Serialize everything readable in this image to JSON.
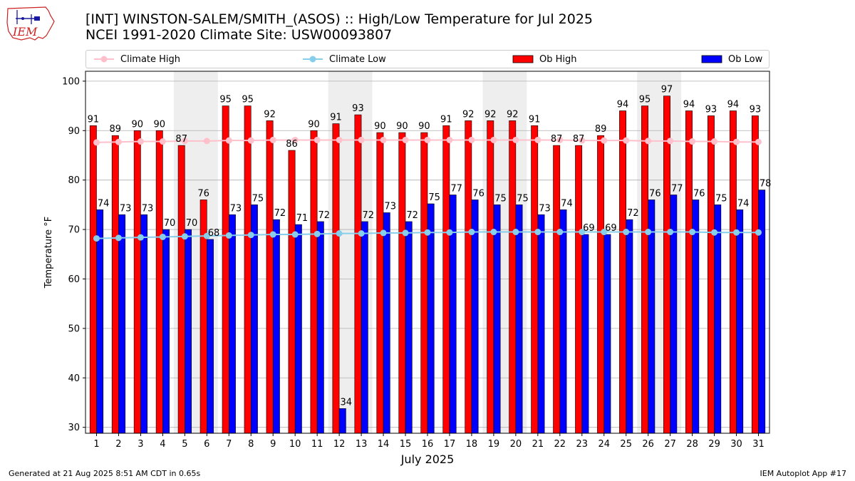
{
  "header": {
    "title_line1": "[INT] WINSTON-SALEM/SMITH_(ASOS) :: High/Low Temperature for Jul 2025",
    "title_line2": "NCEI 1991-2020 Climate Site: USW00093807"
  },
  "logo": {
    "text": "IEM",
    "icon": "iowa-state-logo-icon"
  },
  "legend": {
    "climate_high": "Climate High",
    "climate_low": "Climate Low",
    "ob_high": "Ob High",
    "ob_low": "Ob Low"
  },
  "footer": {
    "generated": "Generated at 21 Aug 2025 8:51 AM CDT in 0.65s",
    "app": "IEM Autoplot App #17"
  },
  "colors": {
    "ob_high": "#ff0000",
    "ob_low": "#0000ff",
    "climate_high": "#ffc0cb",
    "climate_low": "#87ceeb",
    "weekend_shade": "#eeeeee"
  },
  "chart_data": {
    "type": "bar",
    "xlabel": "July 2025",
    "ylabel": "Temperature °F",
    "ylim": [
      28.8,
      102
    ],
    "yticks": [
      30,
      40,
      50,
      60,
      70,
      80,
      90,
      100
    ],
    "grid": true,
    "legend_position": "top",
    "categories": [
      "1",
      "2",
      "3",
      "4",
      "5",
      "6",
      "7",
      "8",
      "9",
      "10",
      "11",
      "12",
      "13",
      "14",
      "15",
      "16",
      "17",
      "18",
      "19",
      "20",
      "21",
      "22",
      "23",
      "24",
      "25",
      "26",
      "27",
      "28",
      "29",
      "30",
      "31"
    ],
    "shaded_days": [
      [
        5,
        6
      ],
      [
        12,
        13
      ],
      [
        19,
        20
      ],
      [
        26,
        27
      ]
    ],
    "series": [
      {
        "name": "Ob High",
        "kind": "bar",
        "values": [
          91,
          89,
          90,
          90,
          87,
          76,
          95,
          95,
          92,
          86,
          90,
          91.4,
          93.2,
          89.6,
          89.6,
          89.6,
          91,
          92,
          92,
          92,
          91,
          87,
          87,
          89,
          94,
          95,
          97,
          94,
          93,
          94,
          93
        ],
        "labels": [
          "91",
          "89",
          "90",
          "90",
          "87",
          "76",
          "95",
          "95",
          "92",
          "86",
          "90",
          "91",
          "93",
          "90",
          "90",
          "90",
          "91",
          "92",
          "92",
          "92",
          "91",
          "87",
          "87",
          "89",
          "94",
          "95",
          "97",
          "94",
          "93",
          "94",
          "93"
        ]
      },
      {
        "name": "Ob Low",
        "kind": "bar",
        "values": [
          74,
          73,
          73,
          70,
          70,
          68,
          73,
          75,
          72,
          71,
          71.6,
          33.8,
          71.6,
          73.4,
          71.6,
          75.2,
          77,
          76,
          75,
          75,
          73,
          74,
          69,
          69,
          72,
          76,
          77,
          76,
          75,
          74,
          78
        ],
        "labels": [
          "74",
          "73",
          "73",
          "70",
          "70",
          "68",
          "73",
          "75",
          "72",
          "71",
          "72",
          "34",
          "72",
          "73",
          "72",
          "75",
          "77",
          "76",
          "75",
          "75",
          "73",
          "74",
          "69",
          "69",
          "72",
          "76",
          "77",
          "76",
          "75",
          "74",
          "78"
        ]
      },
      {
        "name": "Climate High",
        "kind": "line",
        "values": [
          87.6,
          87.7,
          87.8,
          87.8,
          87.9,
          87.9,
          88.0,
          88.0,
          88.1,
          88.1,
          88.1,
          88.1,
          88.1,
          88.1,
          88.1,
          88.1,
          88.1,
          88.1,
          88.1,
          88.1,
          88.1,
          88.1,
          88.0,
          88.0,
          88.0,
          87.9,
          87.9,
          87.8,
          87.8,
          87.7,
          87.7
        ]
      },
      {
        "name": "Climate Low",
        "kind": "line",
        "values": [
          68.2,
          68.3,
          68.4,
          68.5,
          68.6,
          68.7,
          68.8,
          68.9,
          69.0,
          69.0,
          69.1,
          69.2,
          69.2,
          69.3,
          69.3,
          69.4,
          69.4,
          69.5,
          69.5,
          69.5,
          69.5,
          69.5,
          69.5,
          69.5,
          69.5,
          69.5,
          69.5,
          69.5,
          69.4,
          69.4,
          69.4
        ]
      }
    ]
  }
}
